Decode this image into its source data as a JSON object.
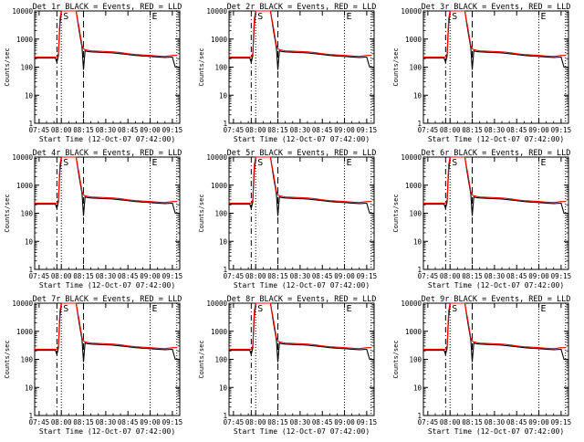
{
  "colors": {
    "events": "#000000",
    "lld": "#ff0000",
    "background": "#ffffff"
  },
  "chart_data": [
    {
      "type": "line",
      "title": "Det 1r BLACK = Events, RED = LLD"
    },
    {
      "type": "line",
      "title": "Det 2r BLACK = Events, RED = LLD"
    },
    {
      "type": "line",
      "title": "Det 3r BLACK = Events, RED = LLD"
    },
    {
      "type": "line",
      "title": "Det 4r BLACK = Events, RED = LLD"
    },
    {
      "type": "line",
      "title": "Det 5r BLACK = Events, RED = LLD"
    },
    {
      "type": "line",
      "title": "Det 6r BLACK = Events, RED = LLD"
    },
    {
      "type": "line",
      "title": "Det 7r BLACK = Events, RED = LLD"
    },
    {
      "type": "line",
      "title": "Det 8r BLACK = Events, RED = LLD"
    },
    {
      "type": "line",
      "title": "Det 9r BLACK = Events, RED = LLD"
    }
  ],
  "shared": {
    "ylabel": "Counts/sec",
    "xlabel": "Start Time (12-Oct-07 07:42:00)",
    "yscale": "log",
    "ylim": [
      1,
      10000
    ],
    "y_tick_labels": [
      "1",
      "10",
      "100",
      "1000",
      "10000"
    ],
    "x_tick_labels": [
      "07:45",
      "08:00",
      "08:15",
      "08:30",
      "08:45",
      "09:00",
      "09:15"
    ],
    "x_tick_minutes": [
      225,
      240,
      255,
      270,
      285,
      300,
      315
    ],
    "xlim_minutes": [
      222,
      320
    ],
    "marker_lines": [
      {
        "minute": 237,
        "style": "dashdot",
        "label": ""
      },
      {
        "minute": 240,
        "style": "dotted",
        "label": "S"
      },
      {
        "minute": 255,
        "style": "dashed",
        "label": ""
      },
      {
        "minute": 300,
        "style": "dotted",
        "label": "E"
      },
      {
        "minute": 318,
        "style": "dotted",
        "label": ""
      }
    ],
    "events_series": {
      "x": [
        222,
        236,
        237,
        238,
        239,
        240,
        241,
        242,
        243,
        244,
        245,
        248,
        250,
        252,
        254,
        255,
        256,
        258,
        260,
        265,
        270,
        275,
        280,
        285,
        290,
        295,
        300,
        305,
        310,
        315,
        316,
        317,
        318
      ],
      "y": [
        210,
        210,
        150,
        250,
        3000,
        10000,
        10000,
        10000,
        10000,
        10000,
        10000,
        10000,
        10000,
        2000,
        500,
        80,
        380,
        360,
        350,
        340,
        330,
        320,
        300,
        280,
        260,
        250,
        240,
        230,
        220,
        230,
        150,
        100,
        100
      ]
    },
    "lld_series": {
      "x": [
        222,
        236,
        237,
        238,
        239,
        240,
        241,
        242,
        243,
        244,
        245,
        248,
        250,
        252,
        254,
        255,
        256,
        258,
        260,
        265,
        270,
        275,
        280,
        285,
        290,
        295,
        300,
        305,
        310,
        315,
        316,
        317,
        318
      ],
      "y": [
        230,
        230,
        230,
        300,
        5000,
        10000,
        10000,
        10000,
        10000,
        10000,
        10000,
        10000,
        10000,
        2500,
        600,
        450,
        420,
        400,
        380,
        370,
        360,
        350,
        330,
        300,
        280,
        270,
        260,
        250,
        240,
        260,
        260,
        260,
        260
      ]
    }
  }
}
